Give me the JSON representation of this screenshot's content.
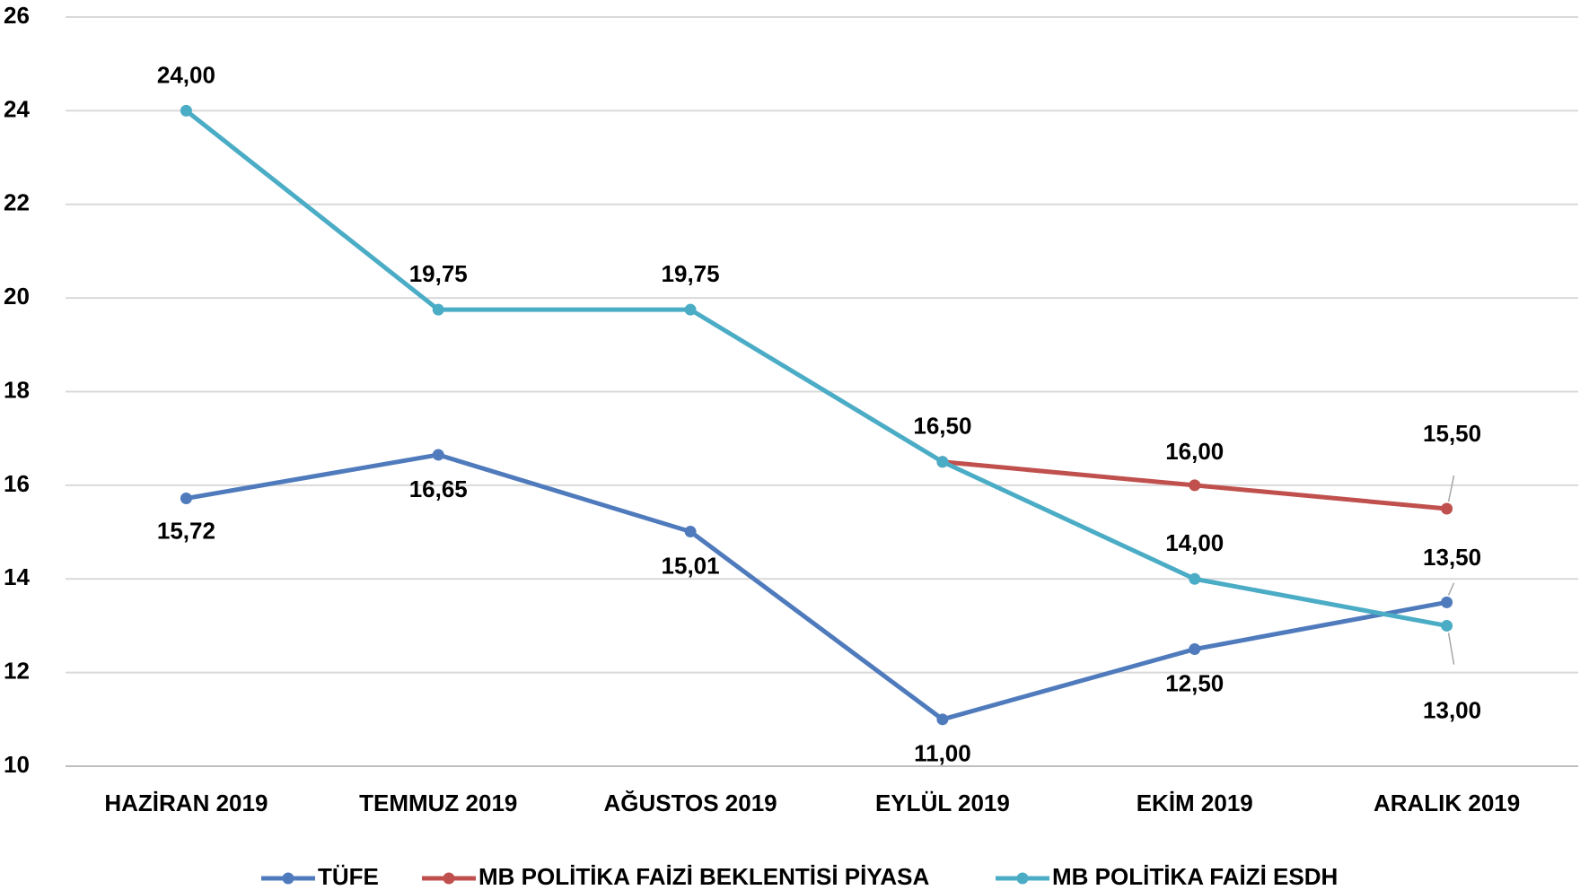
{
  "chart_data": {
    "type": "line",
    "categories": [
      "HAZİRAN 2019",
      "TEMMUZ 2019",
      "AĞUSTOS 2019",
      "EYLÜL 2019",
      "EKİM 2019",
      "ARALIK 2019"
    ],
    "series": [
      {
        "name": "TÜFE",
        "color": "#4f7bbd",
        "values": [
          15.72,
          16.65,
          15.01,
          11.0,
          12.5,
          13.5
        ],
        "value_labels": [
          "15,72",
          "16,65",
          "15,01",
          "11,00",
          "12,50",
          "13,50"
        ]
      },
      {
        "name": "MB POLİTİKA FAİZİ BEKLENTİSİ PİYASA",
        "color": "#c0504d",
        "values": [
          null,
          null,
          null,
          16.5,
          16.0,
          15.5
        ],
        "value_labels": [
          null,
          null,
          null,
          null,
          "16,00",
          "15,50"
        ]
      },
      {
        "name": "MB POLİTİKA FAİZİ ESDH",
        "color": "#4bacc6",
        "values": [
          24.0,
          19.75,
          19.75,
          16.5,
          14.0,
          13.0
        ],
        "value_labels": [
          "24,00",
          "19,75",
          "19,75",
          "16,50",
          "14,00",
          "13,00"
        ]
      }
    ],
    "ylim": [
      10,
      26
    ],
    "yticks": [
      10,
      12,
      14,
      16,
      18,
      20,
      22,
      24,
      26
    ],
    "grid": true,
    "legend": "bottom"
  }
}
